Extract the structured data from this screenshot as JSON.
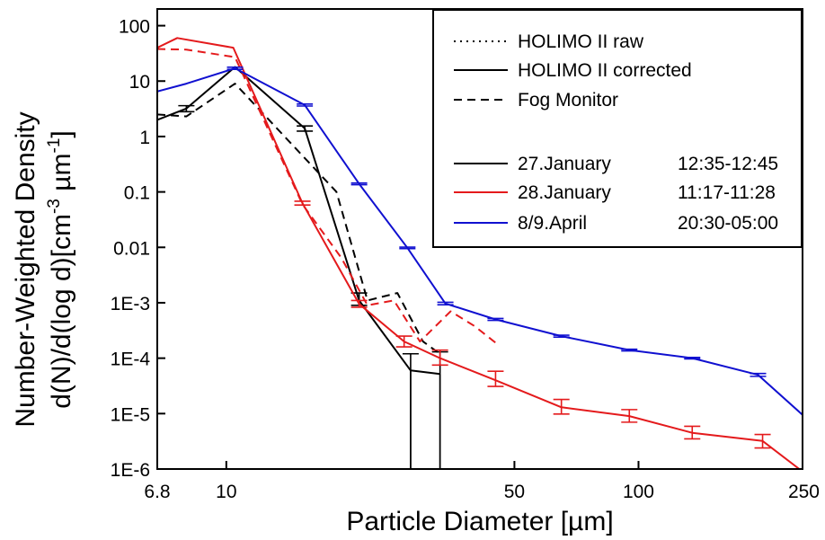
{
  "chart_data": {
    "type": "line",
    "xlabel": "Particle Diameter [µm]",
    "ylabel_line1": "Number-Weighted Density",
    "ylabel_line2_pre": "d(N)/d(log d)[cm",
    "ylabel_line2_sup1": "-3",
    "ylabel_line2_mid": " µm",
    "ylabel_line2_sup2": "-1",
    "ylabel_line2_post": "]",
    "x_scale": "log",
    "y_scale": "log",
    "xlim": [
      6.8,
      250
    ],
    "ylim": [
      1e-06,
      200
    ],
    "x_ticks": [
      {
        "value": 6.8,
        "label": "6.8"
      },
      {
        "value": 10,
        "label": "10"
      },
      {
        "value": 50,
        "label": "50"
      },
      {
        "value": 100,
        "label": "100"
      },
      {
        "value": 250,
        "label": "250"
      }
    ],
    "y_ticks": [
      {
        "value": 100,
        "label": "100"
      },
      {
        "value": 10,
        "label": "10"
      },
      {
        "value": 1,
        "label": "1"
      },
      {
        "value": 0.1,
        "label": "0.1"
      },
      {
        "value": 0.01,
        "label": "0.01"
      },
      {
        "value": 0.001,
        "label": "1E-3"
      },
      {
        "value": 0.0001,
        "label": "1E-4"
      },
      {
        "value": 1e-05,
        "label": "1E-5"
      },
      {
        "value": 1e-06,
        "label": "1E-6"
      }
    ],
    "legend": {
      "placement": "top-right",
      "styles": [
        {
          "label": "HOLIMO II raw",
          "dash": "dotted"
        },
        {
          "label": "HOLIMO II corrected",
          "dash": "solid"
        },
        {
          "label": "Fog Monitor",
          "dash": "dashed"
        }
      ],
      "series": [
        {
          "date": "27.January",
          "time": "12:35-12:45",
          "color": "#000000"
        },
        {
          "date": "28.January",
          "time": "11:17-11:28",
          "color": "#e41a1c"
        },
        {
          "date": "8/9.April",
          "time": "20:30-05:00",
          "color": "#1010d0"
        }
      ]
    },
    "series": [
      {
        "color": "#000000",
        "dash": "solid",
        "x": [
          6.8,
          8,
          10.5,
          15.5,
          21,
          28,
          33
        ],
        "y": [
          2,
          3.2,
          18,
          1.4,
          0.0011,
          6e-05,
          5.2e-05
        ],
        "errors": [
          null,
          [
            2.8,
            3.6
          ],
          null,
          [
            1.25,
            1.55
          ],
          [
            0.0009,
            0.0015
          ],
          [
            1e-06,
            0.00012
          ],
          [
            1e-06,
            0.00013
          ]
        ],
        "drop_to_floor_x": [
          28,
          33
        ]
      },
      {
        "color": "#000000",
        "dash": "dashed",
        "x": [
          6.8,
          8,
          10.5,
          18.5,
          22,
          26,
          30,
          33
        ],
        "y": [
          2.5,
          2.3,
          9,
          0.1,
          0.0011,
          0.0015,
          0.0002,
          0.00012
        ],
        "errors": []
      },
      {
        "color": "#e41a1c",
        "dash": "solid",
        "x": [
          6.8,
          7.6,
          10.4,
          15.3,
          21,
          27,
          33,
          45,
          65,
          95,
          135,
          200,
          250
        ],
        "y": [
          40,
          60,
          40,
          0.063,
          0.00095,
          0.0002,
          0.0001,
          4e-05,
          1.3e-05,
          9e-06,
          4.5e-06,
          3.2e-06,
          9e-07
        ],
        "errors": [
          null,
          null,
          null,
          [
            0.058,
            0.068
          ],
          [
            0.00083,
            0.0011
          ],
          [
            0.00016,
            0.00025
          ],
          [
            7.5e-05,
            0.00014
          ],
          [
            3.1e-05,
            5.8e-05
          ],
          [
            9.8e-06,
            1.8e-05
          ],
          [
            7e-06,
            1.18e-05
          ],
          [
            3.5e-06,
            5.9e-06
          ],
          [
            2.4e-06,
            4.2e-06
          ],
          null
        ]
      },
      {
        "color": "#e41a1c",
        "dash": "dashed",
        "x": [
          6.8,
          8,
          10.5,
          15.3,
          19,
          22,
          25.5,
          29.5,
          35,
          40,
          45
        ],
        "y": [
          38,
          37,
          27,
          0.06,
          0.0065,
          0.0009,
          0.0011,
          0.0002,
          0.0007,
          0.00038,
          0.00019
        ],
        "errors": []
      },
      {
        "color": "#1010d0",
        "dash": "solid",
        "x": [
          6.8,
          8,
          10.5,
          15.5,
          21,
          27.5,
          34,
          45,
          65,
          95,
          135,
          195,
          250
        ],
        "y": [
          6.5,
          9,
          17,
          3.7,
          0.14,
          0.0098,
          0.00097,
          0.0005,
          0.00025,
          0.00014,
          0.0001,
          5e-05,
          9.5e-06
        ],
        "errors": [
          null,
          null,
          [
            16.3,
            17.8
          ],
          [
            3.55,
            3.85
          ],
          [
            0.135,
            0.145
          ],
          [
            0.0095,
            0.0101
          ],
          [
            0.00092,
            0.00102
          ],
          [
            0.00048,
            0.00052
          ],
          [
            0.00024,
            0.00026
          ],
          [
            0.000135,
            0.000145
          ],
          [
            9.7e-05,
            0.000103
          ],
          [
            4.7e-05,
            5.3e-05
          ],
          null
        ]
      }
    ]
  }
}
